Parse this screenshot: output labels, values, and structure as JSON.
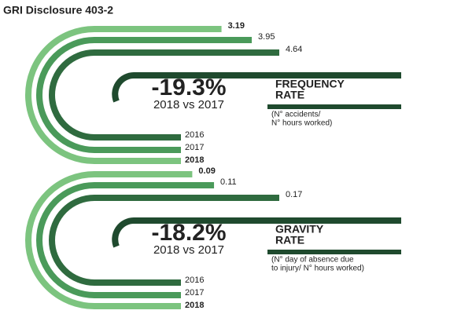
{
  "title": "GRI Disclosure 403-2",
  "chart_data": [
    {
      "type": "radial-bar",
      "categories": [
        "2016",
        "2017",
        "2018"
      ],
      "values": [
        4.64,
        3.95,
        3.19
      ],
      "colors": [
        "#2f6b3f",
        "#4a9a5a",
        "#7cc47f"
      ],
      "change": "-19.3%",
      "comparison": "2018 vs 2017",
      "metric": [
        "FREQUENCY",
        "RATE"
      ],
      "note": [
        "(N° accidents/",
        "N° hours worked)"
      ]
    },
    {
      "type": "radial-bar",
      "categories": [
        "2016",
        "2017",
        "2018"
      ],
      "values": [
        0.17,
        0.11,
        0.09
      ],
      "colors": [
        "#2f6b3f",
        "#4a9a5a",
        "#7cc47f"
      ],
      "change": "-18.2%",
      "comparison": "2018 vs 2017",
      "metric": [
        "GRAVITY",
        "RATE"
      ],
      "note": [
        "(N° day of absence due",
        "to injury/ N° hours worked)"
      ]
    }
  ]
}
